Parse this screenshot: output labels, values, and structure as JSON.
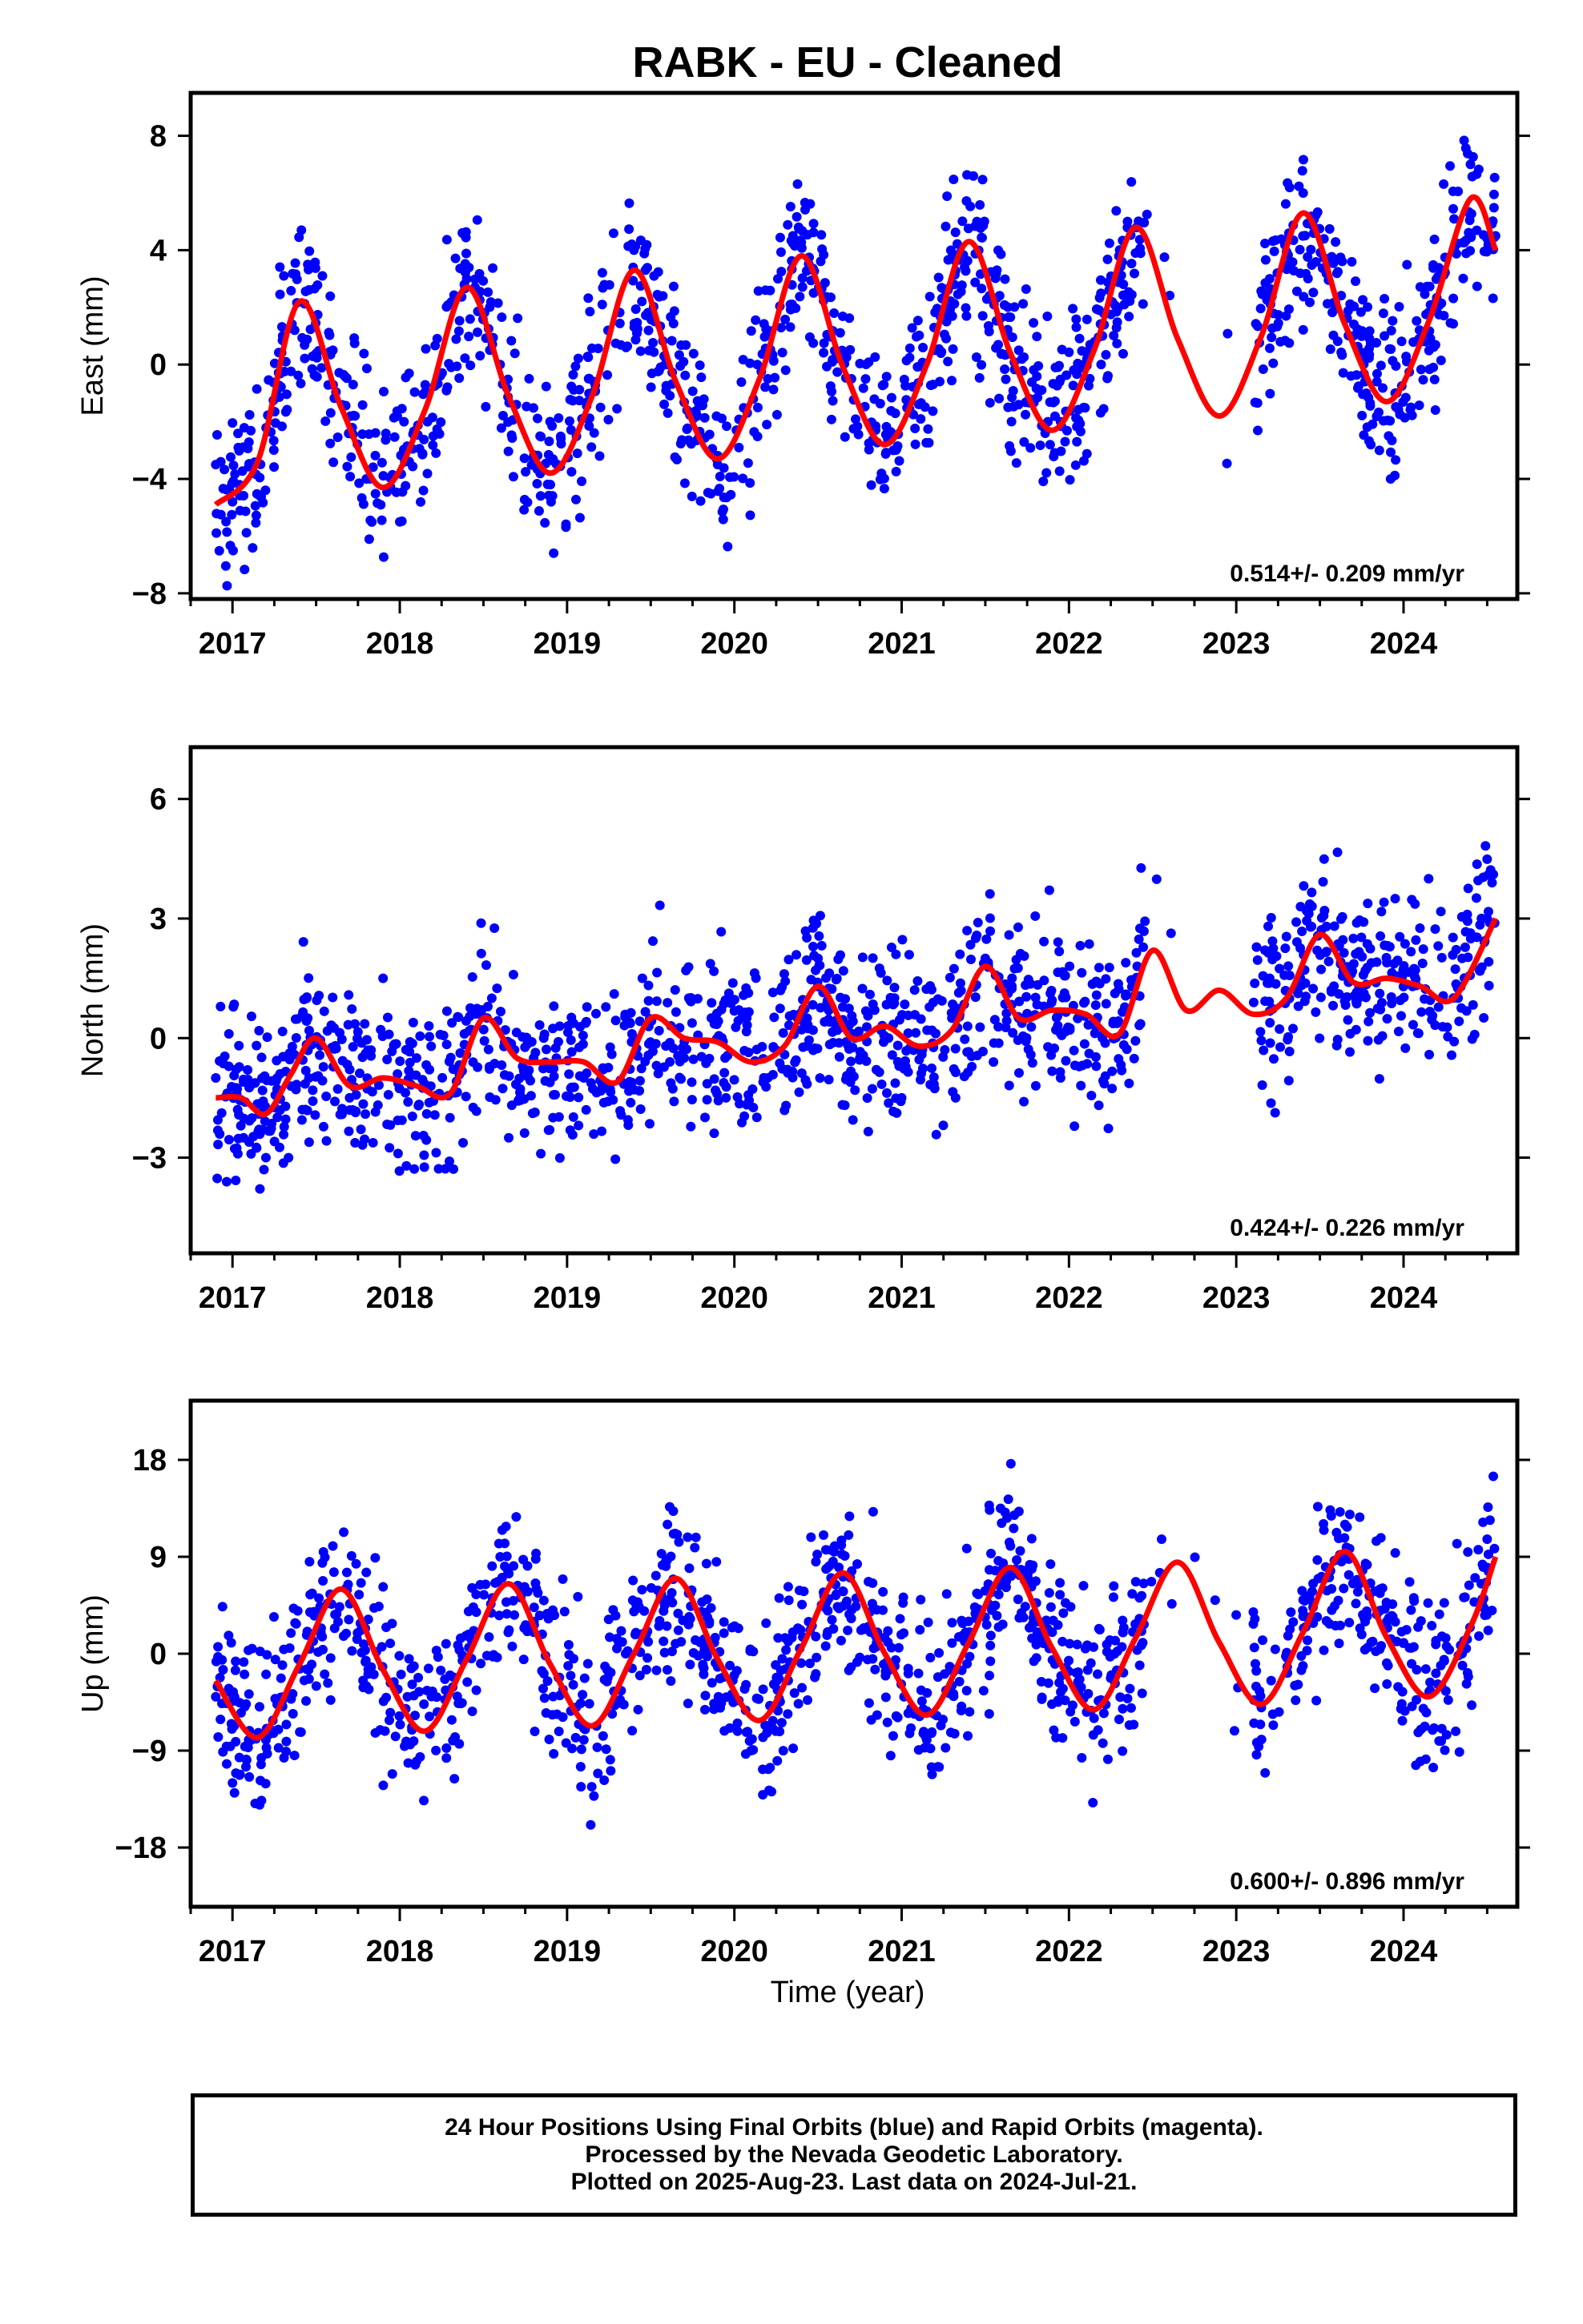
{
  "title": "RABK  - EU - Cleaned",
  "colors": {
    "points": "#0000ff",
    "fit": "#ff0000",
    "frame": "#000000"
  },
  "chart_data": [
    {
      "type": "scatter",
      "component": "east",
      "ylabel": "East (mm)",
      "xlabel": "",
      "xlim": [
        2016.75,
        2024.68
      ],
      "ylim": [
        -8.2,
        9.5
      ],
      "yticks": [
        "8",
        "4",
        "0",
        "−4",
        "−8"
      ],
      "ytick_values": [
        8,
        4,
        0,
        -4,
        -8
      ],
      "xticks": [
        "2017",
        "2018",
        "2019",
        "2020",
        "2021",
        "2022",
        "2023",
        "2024"
      ],
      "xtick_values": [
        2017,
        2018,
        2019,
        2020,
        2021,
        2022,
        2023,
        2024
      ],
      "rate": "0.514+/- 0.209 mm/yr",
      "fit": {
        "x": [
          2016.9,
          2017.15,
          2017.4,
          2017.65,
          2017.9,
          2018.15,
          2018.4,
          2018.65,
          2018.9,
          2019.15,
          2019.4,
          2019.65,
          2019.9,
          2020.15,
          2020.4,
          2020.65,
          2020.9,
          2021.15,
          2021.4,
          2021.65,
          2021.9,
          2022.15,
          2022.4,
          2022.65,
          2022.9,
          2023.15,
          2023.4,
          2023.65,
          2023.9,
          2024.15,
          2024.4,
          2024.55
        ],
        "y": [
          -4.9,
          -3.4,
          2.2,
          -1.5,
          -4.3,
          -1.6,
          2.7,
          -1.1,
          -3.8,
          -1.1,
          3.3,
          -0.6,
          -3.3,
          -0.5,
          3.8,
          -0.1,
          -2.8,
          0.0,
          4.3,
          0.4,
          -2.3,
          0.5,
          4.8,
          0.9,
          -1.8,
          1.0,
          5.3,
          1.4,
          -1.3,
          1.5,
          5.8,
          4.0
        ]
      },
      "sample_points": [
        [
          2016.9,
          -3.5
        ],
        [
          2017.0,
          -4.8
        ],
        [
          2017.3,
          1.0
        ],
        [
          2017.45,
          3.5
        ],
        [
          2017.6,
          0.5
        ],
        [
          2017.8,
          -4.0
        ],
        [
          2018.0,
          -5.5
        ],
        [
          2018.2,
          -2.5
        ],
        [
          2018.4,
          3.0
        ],
        [
          2018.6,
          0.0
        ],
        [
          2018.9,
          -4.2
        ],
        [
          2019.2,
          -1.5
        ],
        [
          2019.4,
          4.0
        ],
        [
          2019.6,
          0.0
        ],
        [
          2019.9,
          -3.5
        ],
        [
          2020.2,
          -0.5
        ],
        [
          2020.35,
          4.5
        ],
        [
          2020.7,
          -0.5
        ],
        [
          2020.95,
          -3.0
        ],
        [
          2021.2,
          0.5
        ],
        [
          2021.45,
          5.0
        ],
        [
          2021.7,
          0.5
        ],
        [
          2021.95,
          -2.0
        ],
        [
          2022.2,
          1.0
        ],
        [
          2022.35,
          5.0
        ],
        [
          2023.2,
          3.0
        ],
        [
          2023.4,
          6.0
        ],
        [
          2023.7,
          1.0
        ],
        [
          2023.95,
          -1.0
        ],
        [
          2024.2,
          2.0
        ],
        [
          2024.4,
          7.0
        ],
        [
          2024.55,
          4.5
        ]
      ]
    },
    {
      "type": "scatter",
      "component": "north",
      "ylabel": "North (mm)",
      "xlabel": "",
      "xlim": [
        2016.75,
        2024.68
      ],
      "ylim": [
        -5.4,
        7.3
      ],
      "yticks": [
        "6",
        "3",
        "0",
        "−3"
      ],
      "ytick_values": [
        6,
        3,
        0,
        -3
      ],
      "xticks": [
        "2017",
        "2018",
        "2019",
        "2020",
        "2021",
        "2022",
        "2023",
        "2024"
      ],
      "xtick_values": [
        2017,
        2018,
        2019,
        2020,
        2021,
        2022,
        2023,
        2024
      ],
      "rate": "0.424+/- 0.226 mm/yr",
      "fit": {
        "x": [
          2016.9,
          2017.05,
          2017.2,
          2017.35,
          2017.5,
          2017.7,
          2017.9,
          2018.1,
          2018.3,
          2018.5,
          2018.7,
          2018.9,
          2019.1,
          2019.3,
          2019.5,
          2019.7,
          2019.9,
          2020.1,
          2020.3,
          2020.5,
          2020.7,
          2020.9,
          2021.1,
          2021.3,
          2021.5,
          2021.7,
          2021.9,
          2022.1,
          2022.3,
          2022.5,
          2022.7,
          2022.9,
          2023.1,
          2023.3,
          2023.5,
          2023.7,
          2023.9,
          2024.1,
          2024.3,
          2024.55
        ],
        "y": [
          -1.5,
          -1.5,
          -1.9,
          -0.9,
          0.0,
          -1.2,
          -1.0,
          -1.2,
          -1.4,
          0.5,
          -0.5,
          -0.6,
          -0.6,
          -1.1,
          0.5,
          0.0,
          -0.1,
          -0.6,
          -0.2,
          1.3,
          0.0,
          0.3,
          -0.2,
          0.2,
          1.8,
          0.5,
          0.7,
          0.6,
          0.1,
          2.2,
          0.7,
          1.2,
          0.6,
          1.0,
          2.6,
          1.4,
          1.5,
          1.3,
          1.0,
          3.0
        ]
      },
      "sample_points": [
        [
          2016.9,
          -1.0
        ],
        [
          2017.05,
          -2.2
        ],
        [
          2017.2,
          -3.0
        ],
        [
          2017.45,
          0.5
        ],
        [
          2017.7,
          -1.5
        ],
        [
          2017.9,
          1.5
        ],
        [
          2018.1,
          -0.5
        ],
        [
          2018.3,
          -2.0
        ],
        [
          2018.55,
          1.0
        ],
        [
          2018.8,
          -0.5
        ],
        [
          2019.1,
          -1.0
        ],
        [
          2019.45,
          1.5
        ],
        [
          2019.7,
          -0.5
        ],
        [
          2019.95,
          -1.5
        ],
        [
          2020.2,
          -1.0
        ],
        [
          2020.5,
          2.0
        ],
        [
          2020.75,
          -0.5
        ],
        [
          2021.0,
          -1.5
        ],
        [
          2021.3,
          0.5
        ],
        [
          2021.5,
          2.0
        ],
        [
          2021.7,
          0.5
        ],
        [
          2021.95,
          -1.0
        ],
        [
          2022.2,
          0.0
        ],
        [
          2023.2,
          1.5
        ],
        [
          2023.45,
          2.8
        ],
        [
          2023.7,
          2.5
        ],
        [
          2023.95,
          3.5
        ],
        [
          2024.15,
          4.0
        ],
        [
          2024.35,
          2.0
        ],
        [
          2024.5,
          3.0
        ]
      ]
    },
    {
      "type": "scatter",
      "component": "up",
      "ylabel": "Up (mm)",
      "xlabel": "Time (year)",
      "xlim": [
        2016.75,
        2024.68
      ],
      "ylim": [
        -23.5,
        23.5
      ],
      "yticks": [
        "18",
        "9",
        "0",
        "−9",
        "−18"
      ],
      "ytick_values": [
        18,
        9,
        0,
        -9,
        -18
      ],
      "xticks": [
        "2017",
        "2018",
        "2019",
        "2020",
        "2021",
        "2022",
        "2023",
        "2024"
      ],
      "xtick_values": [
        2017,
        2018,
        2019,
        2020,
        2021,
        2022,
        2023,
        2024
      ],
      "rate": "0.600+/- 0.896 mm/yr",
      "fit": {
        "x": [
          2016.9,
          2017.15,
          2017.4,
          2017.65,
          2017.9,
          2018.15,
          2018.4,
          2018.65,
          2018.9,
          2019.15,
          2019.4,
          2019.65,
          2019.9,
          2020.15,
          2020.4,
          2020.65,
          2020.9,
          2021.15,
          2021.4,
          2021.65,
          2021.9,
          2022.15,
          2022.4,
          2022.65,
          2022.9,
          2023.15,
          2023.4,
          2023.65,
          2023.9,
          2024.15,
          2024.4,
          2024.55
        ],
        "y": [
          -2.5,
          -7.8,
          -1.0,
          6.0,
          -1.5,
          -7.2,
          -0.5,
          6.5,
          -1.0,
          -6.7,
          0.0,
          7.0,
          -0.5,
          -6.2,
          0.5,
          7.5,
          0.0,
          -5.7,
          1.0,
          8.0,
          0.5,
          -5.2,
          1.5,
          8.5,
          1.0,
          -4.7,
          2.0,
          9.5,
          1.5,
          -4.0,
          2.5,
          9.0
        ]
      },
      "sample_points": [
        [
          2016.9,
          -4.0
        ],
        [
          2017.0,
          -12.0
        ],
        [
          2017.2,
          -8.0
        ],
        [
          2017.45,
          2.0
        ],
        [
          2017.6,
          10.0
        ],
        [
          2017.8,
          -3.0
        ],
        [
          2018.1,
          -10.0
        ],
        [
          2018.3,
          -2.0
        ],
        [
          2018.6,
          9.0
        ],
        [
          2018.8,
          2.0
        ],
        [
          2019.1,
          -8.0
        ],
        [
          2019.35,
          0.0
        ],
        [
          2019.6,
          12.0
        ],
        [
          2019.85,
          3.0
        ],
        [
          2020.1,
          -9.0
        ],
        [
          2020.35,
          2.0
        ],
        [
          2020.6,
          10.0
        ],
        [
          2020.85,
          1.0
        ],
        [
          2021.15,
          -8.0
        ],
        [
          2021.4,
          3.0
        ],
        [
          2021.65,
          10.0
        ],
        [
          2021.9,
          2.0
        ],
        [
          2022.15,
          -6.0
        ],
        [
          2023.15,
          -5.0
        ],
        [
          2023.4,
          5.0
        ],
        [
          2023.65,
          12.0
        ],
        [
          2023.9,
          3.0
        ],
        [
          2024.1,
          -10.0
        ],
        [
          2024.35,
          0.0
        ],
        [
          2024.5,
          8.0
        ]
      ]
    }
  ],
  "footer": {
    "line1": "24 Hour Positions Using Final Orbits (blue) and Rapid Orbits (magenta).",
    "line2": "Processed by the Nevada Geodetic Laboratory.",
    "line3": "Plotted on 2025-Aug-23. Last data on 2024-Jul-21."
  }
}
